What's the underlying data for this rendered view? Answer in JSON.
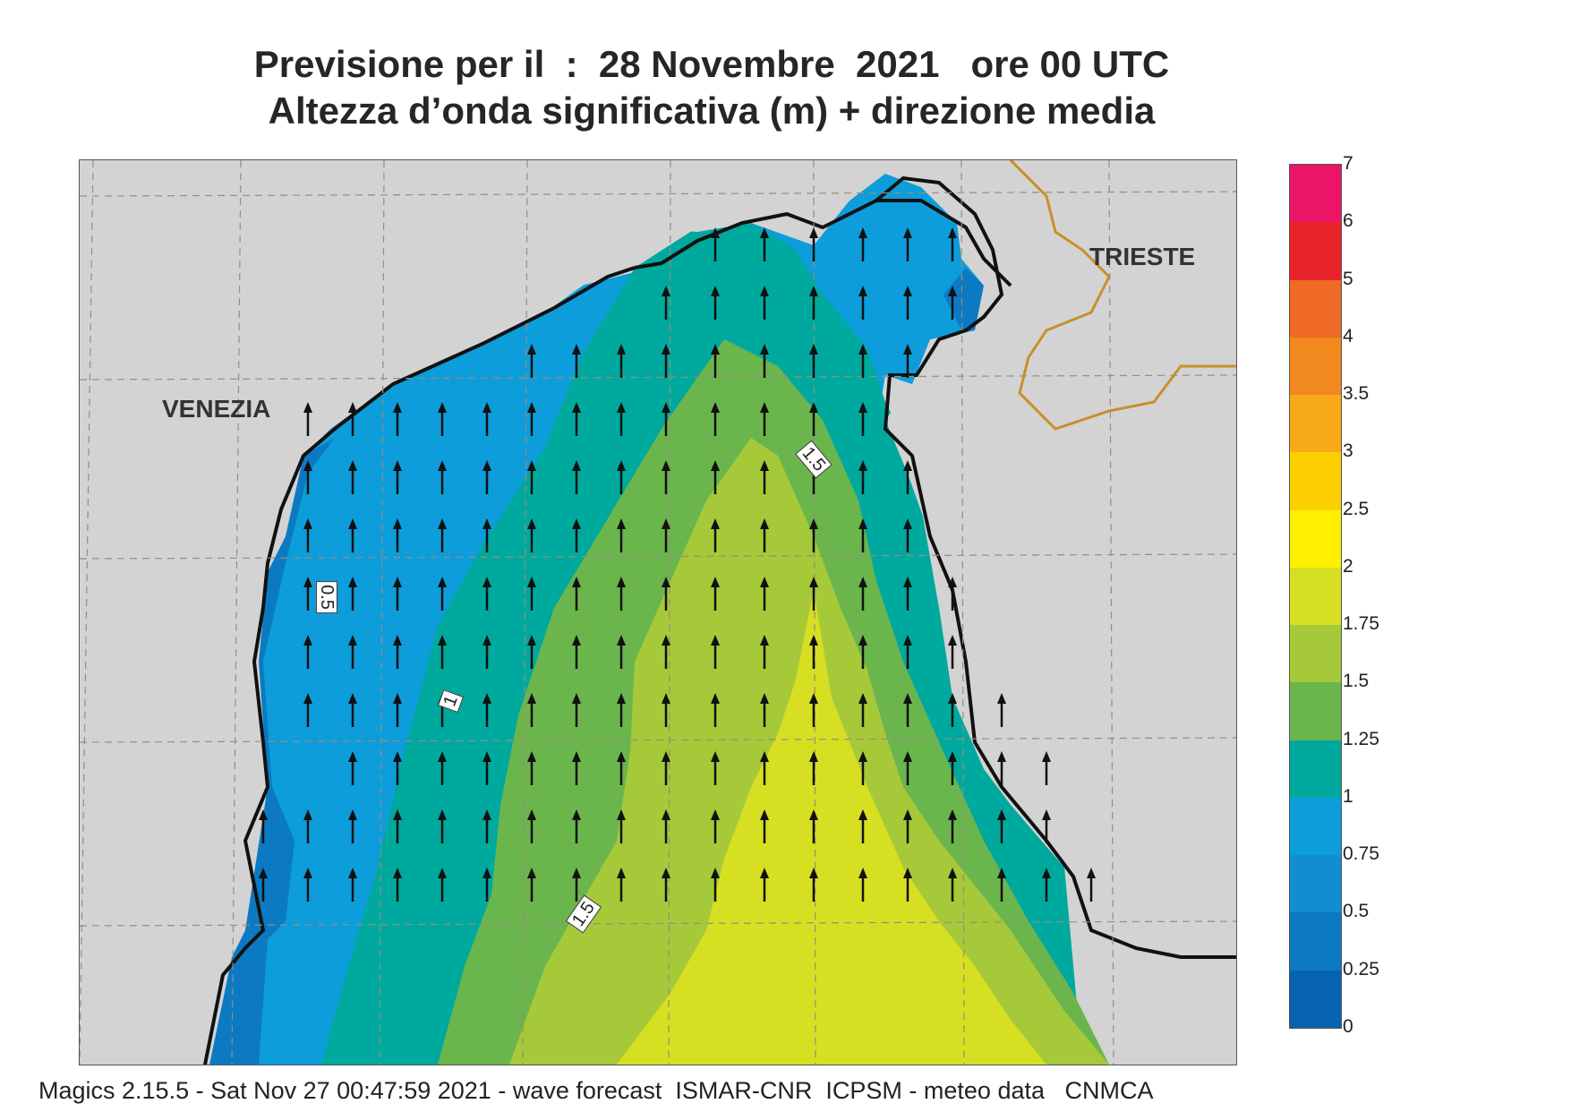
{
  "title": {
    "line1": "Previsione per il  :  28 Novembre  2021   ore 00 UTC",
    "line2": "Altezza d’onda significativa (m) + direzione media"
  },
  "map": {
    "cities": {
      "venezia": "VENEZIA",
      "trieste": "TRIESTE"
    },
    "contour_labels": [
      "0.5",
      "1",
      "1.5",
      "1.5"
    ],
    "arrow_direction": "north",
    "colors": {
      "land": "#d3d3d3",
      "coast": "#111111",
      "border": "#c8902a",
      "grid": "#9a8c7c"
    }
  },
  "legend": {
    "levels": [
      {
        "label": "7",
        "color": null
      },
      {
        "label": "6",
        "color": "#ec1467"
      },
      {
        "label": "5",
        "color": "#e8232a"
      },
      {
        "label": "4",
        "color": "#ef6a24"
      },
      {
        "label": "3.5",
        "color": "#f1891f"
      },
      {
        "label": "3",
        "color": "#f8a91a"
      },
      {
        "label": "2.5",
        "color": "#fcd000"
      },
      {
        "label": "2",
        "color": "#fff000"
      },
      {
        "label": "1.75",
        "color": "#d7df23"
      },
      {
        "label": "1.5",
        "color": "#a5c939"
      },
      {
        "label": "1.25",
        "color": "#6bb54d"
      },
      {
        "label": "1",
        "color": "#00a99d"
      },
      {
        "label": "0.75",
        "color": "#0d9ddb"
      },
      {
        "label": "0.5",
        "color": "#108ed1"
      },
      {
        "label": "0.25",
        "color": "#0b7ac2"
      },
      {
        "label": "0",
        "color": "#0663b0"
      }
    ]
  },
  "footer": "Magics 2.15.5 - Sat Nov 27 00:47:59 2021 - wave forecast  ISMAR-CNR  ICPSM - meteo data   CNMCA"
}
